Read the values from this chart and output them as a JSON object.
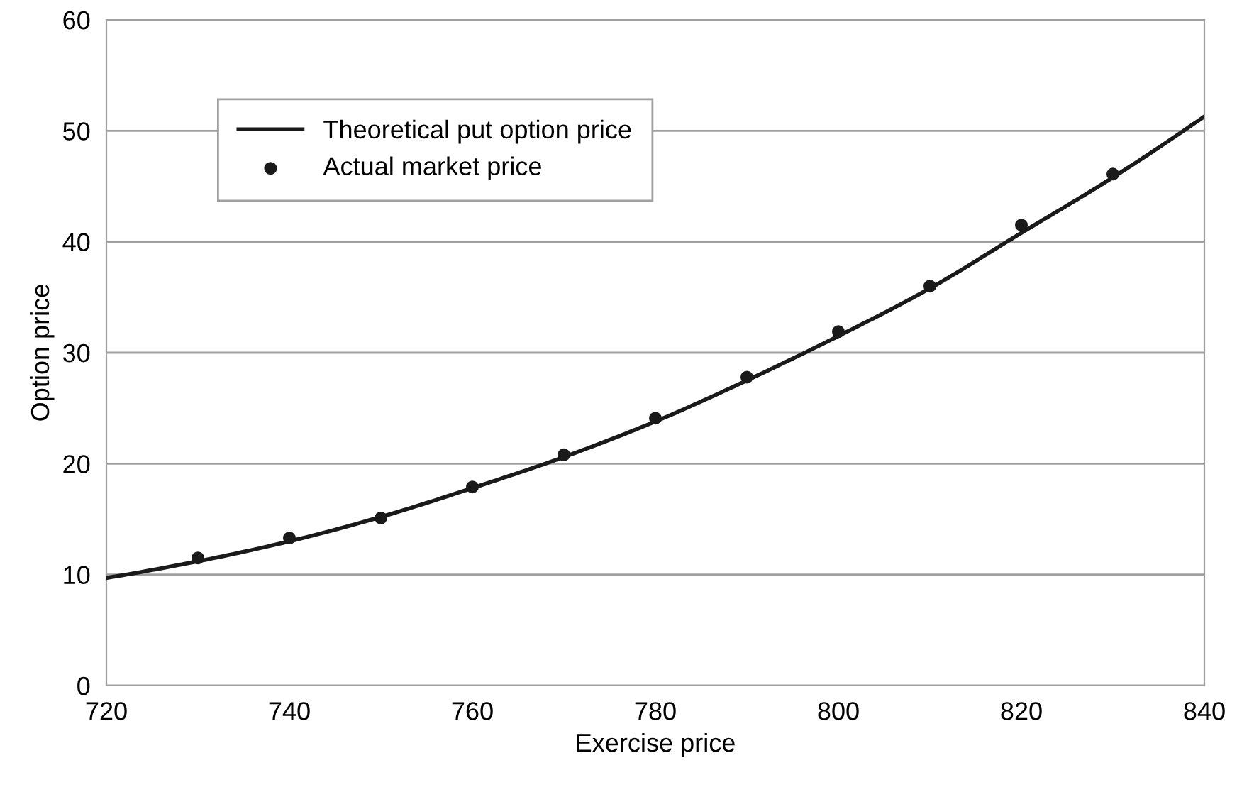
{
  "chart_data": {
    "type": "line",
    "xlabel": "Exercise price",
    "ylabel": "Option price",
    "xlim": [
      720,
      840
    ],
    "xticks": [
      720,
      740,
      760,
      780,
      800,
      820,
      840
    ],
    "ylim": [
      0,
      60
    ],
    "yticks": [
      0,
      10,
      20,
      30,
      40,
      50,
      60
    ],
    "grid": "y",
    "legend": "top left",
    "series": [
      {
        "name": "Theoretical put option price",
        "color": "#1a1a1a",
        "marker": "none",
        "line_style": "solid",
        "x": [
          720,
          730,
          740,
          750,
          760,
          770,
          780,
          790,
          800,
          810,
          820,
          830,
          840
        ],
        "values": [
          9.7,
          11.2,
          13.0,
          15.2,
          17.8,
          20.6,
          23.8,
          27.5,
          31.5,
          35.8,
          40.8,
          45.8,
          51.3
        ]
      },
      {
        "name": "Actual market price",
        "type": "scatter",
        "color": "#1a1a1a",
        "marker": "circle",
        "x": [
          730,
          740,
          750,
          760,
          770,
          780,
          790,
          800,
          810,
          820,
          830
        ],
        "values": [
          11.5,
          13.3,
          15.1,
          17.9,
          20.8,
          24.1,
          27.8,
          31.9,
          36.0,
          41.5,
          46.1
        ]
      }
    ]
  }
}
